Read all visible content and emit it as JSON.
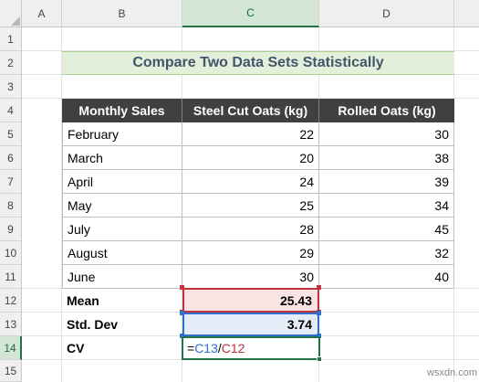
{
  "columns": [
    "A",
    "B",
    "C",
    "D"
  ],
  "rows": [
    "1",
    "2",
    "3",
    "4",
    "5",
    "6",
    "7",
    "8",
    "9",
    "10",
    "11",
    "12",
    "13",
    "14",
    "15"
  ],
  "title": "Compare Two Data Sets Statistically",
  "table": {
    "headers": [
      "Monthly Sales",
      "Steel Cut Oats (kg)",
      "Rolled Oats (kg)"
    ],
    "rows": [
      {
        "month": "February",
        "steel": "22",
        "rolled": "30"
      },
      {
        "month": "March",
        "steel": "20",
        "rolled": "38"
      },
      {
        "month": "April",
        "steel": "24",
        "rolled": "39"
      },
      {
        "month": "May",
        "steel": "25",
        "rolled": "34"
      },
      {
        "month": "July",
        "steel": "28",
        "rolled": "45"
      },
      {
        "month": "August",
        "steel": "29",
        "rolled": "32"
      },
      {
        "month": "June",
        "steel": "30",
        "rolled": "40"
      }
    ]
  },
  "stats": {
    "mean_label": "Mean",
    "mean_value": "25.43",
    "std_label": "Std. Dev",
    "std_value": "3.74",
    "cv_label": "CV",
    "formula": {
      "eq": "=",
      "ref1": "C13",
      "op": "/",
      "ref2": "C12"
    }
  },
  "colors": {
    "ref1": "#2f6fcf",
    "ref2": "#c0323c",
    "selection": "#217346"
  },
  "watermark": "wsxdn.com"
}
